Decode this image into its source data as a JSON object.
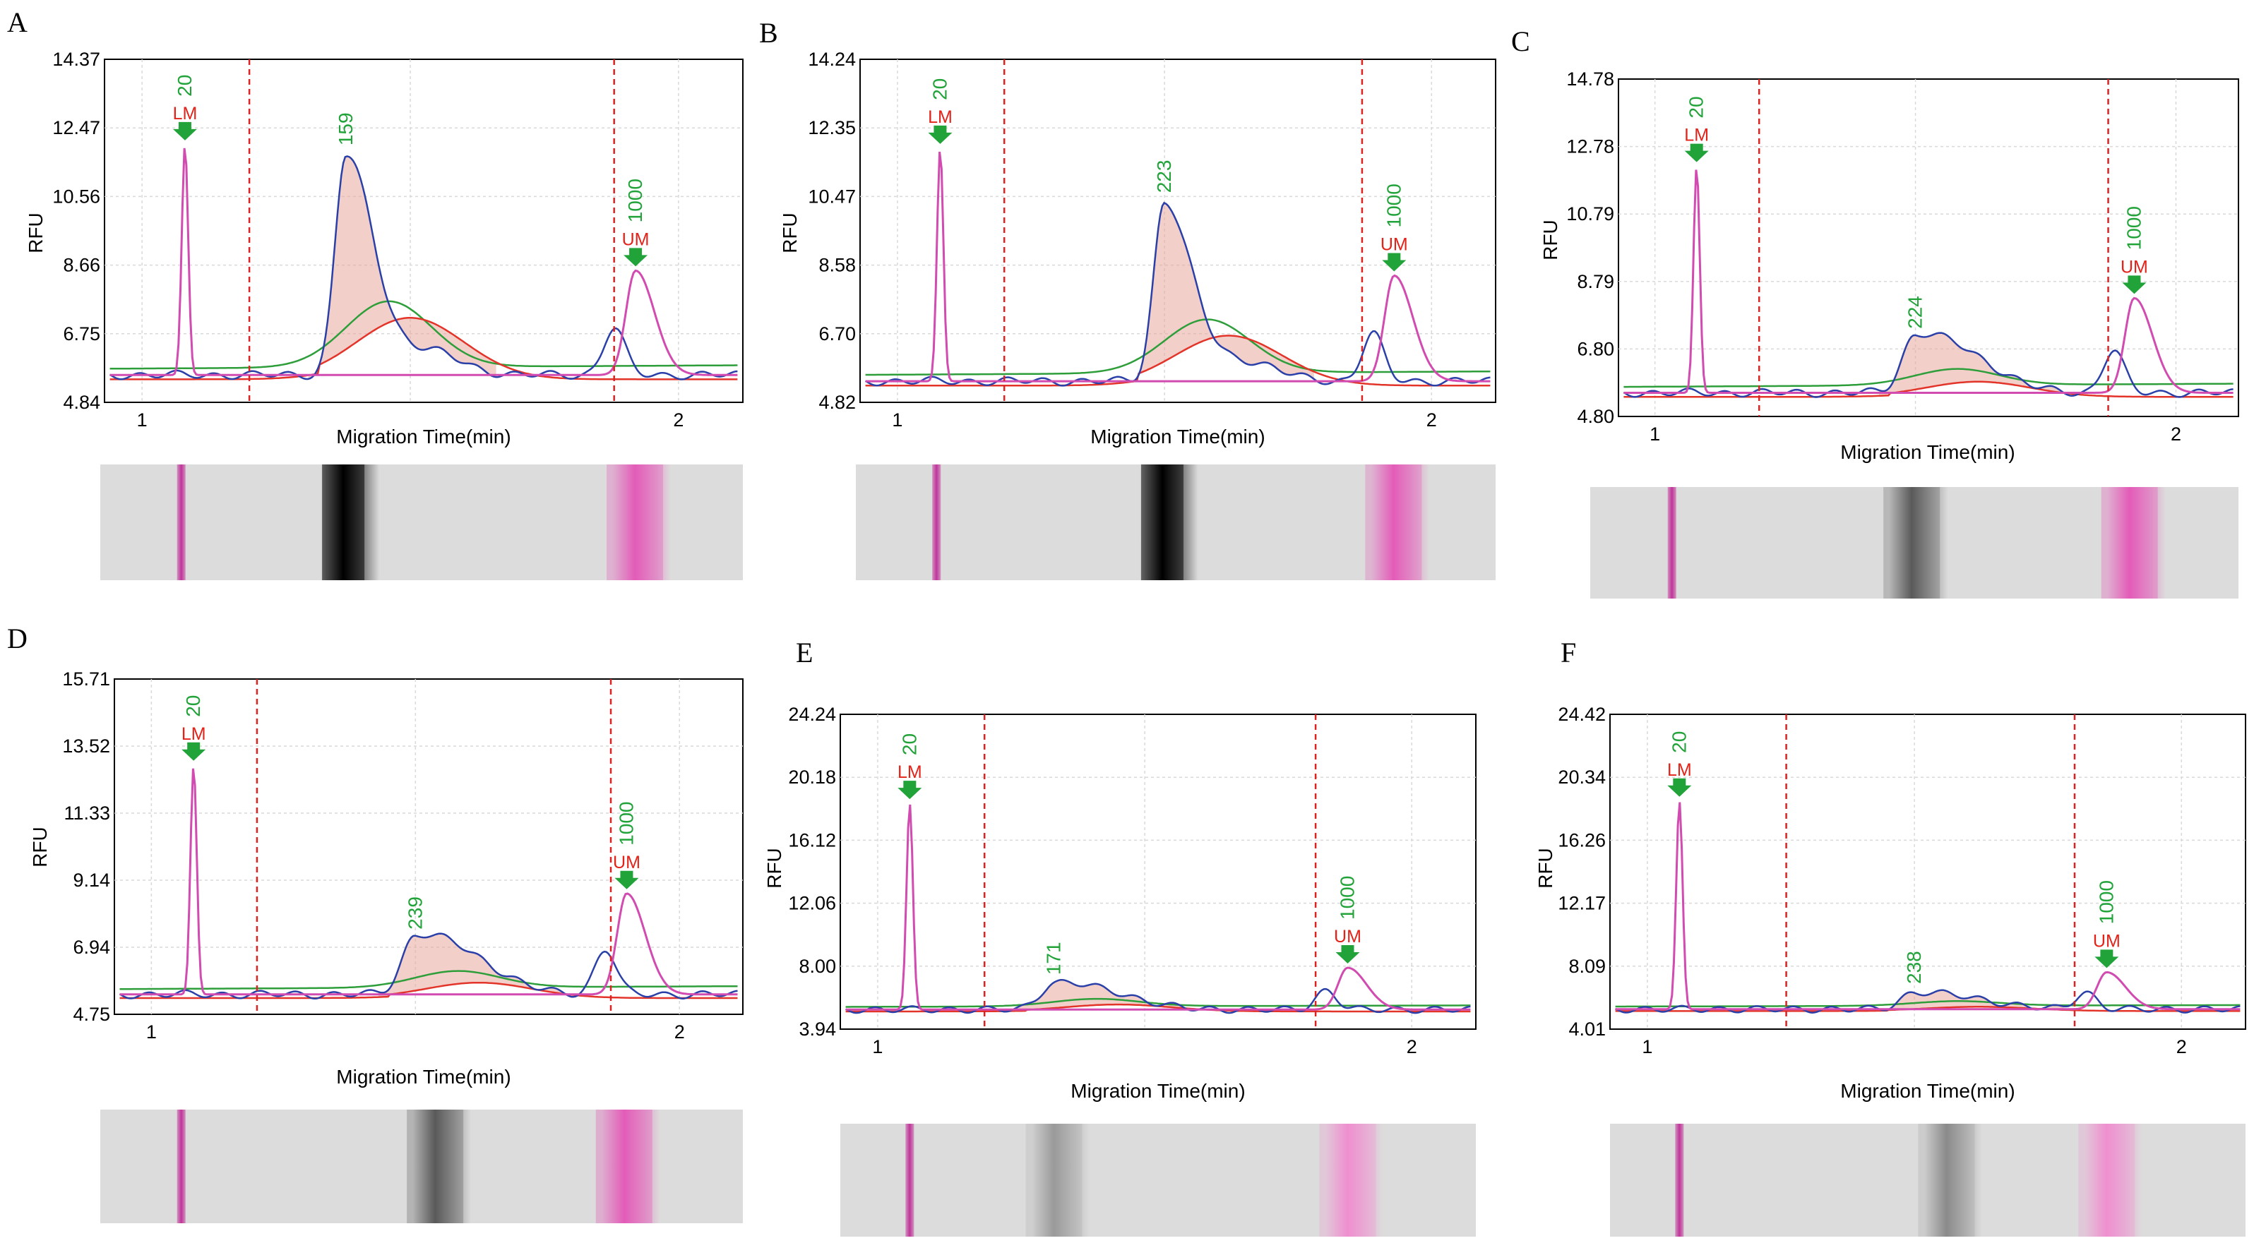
{
  "figure": {
    "panels": [
      {
        "label": "A",
        "ylabel": "RFU",
        "xlabel": "Migration Time(min)",
        "y_ticks": [
          "14.37",
          "12.47",
          "10.56",
          "8.66",
          "6.75",
          "4.84"
        ],
        "x_ticks": [
          "1",
          "2"
        ]
      },
      {
        "label": "B",
        "ylabel": "RFU",
        "xlabel": "Migration Time(min)",
        "y_ticks": [
          "14.24",
          "12.35",
          "10.47",
          "8.58",
          "6.70",
          "4.82"
        ],
        "x_ticks": [
          "1",
          "2"
        ]
      },
      {
        "label": "C",
        "ylabel": "RFU",
        "xlabel": "Migration Time(min)",
        "y_ticks": [
          "14.78",
          "12.78",
          "10.79",
          "8.79",
          "6.80",
          "4.80"
        ],
        "x_ticks": [
          "1",
          "2"
        ]
      },
      {
        "label": "D",
        "ylabel": "RFU",
        "xlabel": "Migration Time(min)",
        "y_ticks": [
          "15.71",
          "13.52",
          "11.33",
          "9.14",
          "6.94",
          "4.75"
        ],
        "x_ticks": [
          "1",
          "2"
        ]
      },
      {
        "label": "E",
        "ylabel": "RFU",
        "xlabel": "Migration Time(min)",
        "y_ticks": [
          "24.24",
          "20.18",
          "16.12",
          "12.06",
          "8.00",
          "3.94"
        ],
        "x_ticks": [
          "1",
          "2"
        ]
      },
      {
        "label": "F",
        "ylabel": "RFU",
        "xlabel": "Migration Time(min)",
        "y_ticks": [
          "24.42",
          "20.34",
          "16.26",
          "12.17",
          "8.09",
          "4.01"
        ],
        "x_ticks": [
          "1",
          "2"
        ]
      }
    ]
  },
  "chart_data": [
    {
      "panel": "A",
      "type": "line",
      "xlim": [
        0.93,
        2.12
      ],
      "ylim": [
        4.84,
        14.37
      ],
      "grid": true,
      "lower_marker": {
        "label": "LM",
        "size": "20",
        "time": 1.08,
        "height": 12.0
      },
      "upper_marker": {
        "label": "UM",
        "size": "1000",
        "time": 1.92,
        "height": 8.5
      },
      "region_bounds": [
        1.2,
        1.88
      ],
      "peaks": [
        {
          "size": "159",
          "time": 1.38,
          "height": 11.7
        }
      ],
      "baseline": 5.6,
      "series": [
        {
          "name": "",
          "color": "#2a40a8"
        },
        {
          "name": "",
          "color": "#2e9e3a"
        },
        {
          "name": "",
          "color": "#e3342a"
        },
        {
          "name": "",
          "color": "#d14bb0"
        }
      ],
      "gel_bands": [
        {
          "time": 1.08,
          "color": "#c0359a",
          "intensity": 0.9
        },
        {
          "time": 1.38,
          "color": "#000000",
          "intensity": 1.0
        },
        {
          "time": 1.92,
          "color": "#e35cb8",
          "intensity": 0.6
        }
      ]
    },
    {
      "panel": "B",
      "type": "line",
      "xlim": [
        0.93,
        2.12
      ],
      "ylim": [
        4.82,
        14.24
      ],
      "grid": true,
      "lower_marker": {
        "label": "LM",
        "size": "20",
        "time": 1.08,
        "height": 11.8
      },
      "upper_marker": {
        "label": "UM",
        "size": "1000",
        "time": 1.93,
        "height": 8.3
      },
      "region_bounds": [
        1.2,
        1.87
      ],
      "peaks": [
        {
          "size": "223",
          "time": 1.5,
          "height": 10.3
        }
      ],
      "baseline": 5.4,
      "series": [
        {
          "name": "",
          "color": "#2a40a8"
        },
        {
          "name": "",
          "color": "#2e9e3a"
        },
        {
          "name": "",
          "color": "#e3342a"
        },
        {
          "name": "",
          "color": "#d14bb0"
        }
      ],
      "gel_bands": [
        {
          "time": 1.08,
          "color": "#c0359a",
          "intensity": 0.9
        },
        {
          "time": 1.5,
          "color": "#000000",
          "intensity": 0.95
        },
        {
          "time": 1.93,
          "color": "#e35cb8",
          "intensity": 0.55
        }
      ]
    },
    {
      "panel": "C",
      "type": "line",
      "xlim": [
        0.93,
        2.12
      ],
      "ylim": [
        4.8,
        14.78
      ],
      "grid": true,
      "lower_marker": {
        "label": "LM",
        "size": "20",
        "time": 1.08,
        "height": 12.2
      },
      "upper_marker": {
        "label": "UM",
        "size": "1000",
        "time": 1.92,
        "height": 8.3
      },
      "region_bounds": [
        1.2,
        1.87
      ],
      "peaks": [
        {
          "size": "224",
          "time": 1.5,
          "height": 7.1
        }
      ],
      "baseline": 5.5,
      "series": [
        {
          "name": "",
          "color": "#2a40a8"
        },
        {
          "name": "",
          "color": "#2e9e3a"
        },
        {
          "name": "",
          "color": "#e3342a"
        },
        {
          "name": "",
          "color": "#d14bb0"
        }
      ],
      "gel_bands": [
        {
          "time": 1.08,
          "color": "#c0359a",
          "intensity": 0.9
        },
        {
          "time": 1.52,
          "color": "#5a5a5a",
          "intensity": 0.5
        },
        {
          "time": 1.92,
          "color": "#e35cb8",
          "intensity": 0.6
        }
      ]
    },
    {
      "panel": "D",
      "type": "line",
      "xlim": [
        0.93,
        2.12
      ],
      "ylim": [
        4.75,
        15.71
      ],
      "grid": true,
      "lower_marker": {
        "label": "LM",
        "size": "20",
        "time": 1.08,
        "height": 12.9
      },
      "upper_marker": {
        "label": "UM",
        "size": "1000",
        "time": 1.9,
        "height": 8.7
      },
      "region_bounds": [
        1.2,
        1.87
      ],
      "peaks": [
        {
          "size": "239",
          "time": 1.5,
          "height": 7.2
        }
      ],
      "baseline": 5.4,
      "series": [
        {
          "name": "",
          "color": "#2a40a8"
        },
        {
          "name": "",
          "color": "#2e9e3a"
        },
        {
          "name": "",
          "color": "#e3342a"
        },
        {
          "name": "",
          "color": "#d14bb0"
        }
      ],
      "gel_bands": [
        {
          "time": 1.08,
          "color": "#c0359a",
          "intensity": 0.9
        },
        {
          "time": 1.55,
          "color": "#5a5a5a",
          "intensity": 0.55
        },
        {
          "time": 1.9,
          "color": "#e35cb8",
          "intensity": 0.65
        }
      ]
    },
    {
      "panel": "E",
      "type": "line",
      "xlim": [
        0.93,
        2.12
      ],
      "ylim": [
        3.94,
        24.24
      ],
      "grid": true,
      "lower_marker": {
        "label": "LM",
        "size": "20",
        "time": 1.06,
        "height": 18.5
      },
      "upper_marker": {
        "label": "UM",
        "size": "1000",
        "time": 1.88,
        "height": 7.9
      },
      "region_bounds": [
        1.2,
        1.82
      ],
      "peaks": [
        {
          "size": "171",
          "time": 1.33,
          "height": 6.8
        }
      ],
      "baseline": 5.2,
      "series": [
        {
          "name": "",
          "color": "#2a40a8"
        },
        {
          "name": "",
          "color": "#2e9e3a"
        },
        {
          "name": "",
          "color": "#e3342a"
        },
        {
          "name": "",
          "color": "#d14bb0"
        }
      ],
      "gel_bands": [
        {
          "time": 1.06,
          "color": "#c0359a",
          "intensity": 0.9
        },
        {
          "time": 1.33,
          "color": "#9a9a9a",
          "intensity": 0.35
        },
        {
          "time": 1.88,
          "color": "#f08fd0",
          "intensity": 0.45
        }
      ]
    },
    {
      "panel": "F",
      "type": "line",
      "xlim": [
        0.93,
        2.12
      ],
      "ylim": [
        4.01,
        24.42
      ],
      "grid": true,
      "lower_marker": {
        "label": "LM",
        "size": "20",
        "time": 1.06,
        "height": 18.8
      },
      "upper_marker": {
        "label": "UM",
        "size": "1000",
        "time": 1.86,
        "height": 7.7
      },
      "region_bounds": [
        1.26,
        1.8
      ],
      "peaks": [
        {
          "size": "238",
          "time": 1.5,
          "height": 6.3
        }
      ],
      "baseline": 5.3,
      "series": [
        {
          "name": "",
          "color": "#2a40a8"
        },
        {
          "name": "",
          "color": "#2e9e3a"
        },
        {
          "name": "",
          "color": "#e3342a"
        },
        {
          "name": "",
          "color": "#d14bb0"
        }
      ],
      "gel_bands": [
        {
          "time": 1.06,
          "color": "#c0359a",
          "intensity": 0.9
        },
        {
          "time": 1.56,
          "color": "#8a8a8a",
          "intensity": 0.35
        },
        {
          "time": 1.86,
          "color": "#f08fd0",
          "intensity": 0.45
        }
      ]
    }
  ]
}
